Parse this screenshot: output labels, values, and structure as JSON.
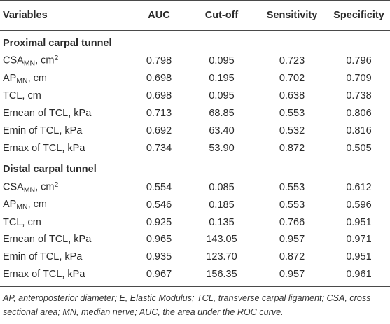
{
  "header": {
    "variables": "Variables",
    "auc": "AUC",
    "cutoff": "Cut-off",
    "sensitivity": "Sensitivity",
    "specificity": "Specificity"
  },
  "sections": [
    {
      "title": "Proximal carpal tunnel",
      "rows": [
        {
          "label": "CSA",
          "sub": "MN",
          "suffix": ", cm",
          "sup": "2",
          "auc": "0.798",
          "cutoff": "0.095",
          "sensitivity": "0.723",
          "specificity": "0.796"
        },
        {
          "label": "AP",
          "sub": "MN",
          "suffix": ", cm",
          "sup": "",
          "auc": "0.698",
          "cutoff": "0.195",
          "sensitivity": "0.702",
          "specificity": "0.709"
        },
        {
          "label": "TCL, cm",
          "sub": "",
          "suffix": "",
          "sup": "",
          "auc": "0.698",
          "cutoff": "0.095",
          "sensitivity": "0.638",
          "specificity": "0.738"
        },
        {
          "label": "Emean of TCL, kPa",
          "sub": "",
          "suffix": "",
          "sup": "",
          "auc": "0.713",
          "cutoff": "68.85",
          "sensitivity": "0.553",
          "specificity": "0.806"
        },
        {
          "label": "Emin of TCL, kPa",
          "sub": "",
          "suffix": "",
          "sup": "",
          "auc": "0.692",
          "cutoff": "63.40",
          "sensitivity": "0.532",
          "specificity": "0.816"
        },
        {
          "label": "Emax of TCL, kPa",
          "sub": "",
          "suffix": "",
          "sup": "",
          "auc": "0.734",
          "cutoff": "53.90",
          "sensitivity": "0.872",
          "specificity": "0.505"
        }
      ]
    },
    {
      "title": "Distal carpal tunnel",
      "rows": [
        {
          "label": "CSA",
          "sub": "MN",
          "suffix": ", cm",
          "sup": "2",
          "auc": "0.554",
          "cutoff": "0.085",
          "sensitivity": "0.553",
          "specificity": "0.612"
        },
        {
          "label": "AP",
          "sub": "MN",
          "suffix": ", cm",
          "sup": "",
          "auc": "0.546",
          "cutoff": "0.185",
          "sensitivity": "0.553",
          "specificity": "0.596"
        },
        {
          "label": "TCL, cm",
          "sub": "",
          "suffix": "",
          "sup": "",
          "auc": "0.925",
          "cutoff": "0.135",
          "sensitivity": "0.766",
          "specificity": "0.951"
        },
        {
          "label": "Emean of TCL, kPa",
          "sub": "",
          "suffix": "",
          "sup": "",
          "auc": "0.965",
          "cutoff": "143.05",
          "sensitivity": "0.957",
          "specificity": "0.971"
        },
        {
          "label": "Emin of TCL, kPa",
          "sub": "",
          "suffix": "",
          "sup": "",
          "auc": "0.935",
          "cutoff": "123.70",
          "sensitivity": "0.872",
          "specificity": "0.951"
        },
        {
          "label": "Emax of TCL, kPa",
          "sub": "",
          "suffix": "",
          "sup": "",
          "auc": "0.967",
          "cutoff": "156.35",
          "sensitivity": "0.957",
          "specificity": "0.961"
        }
      ]
    }
  ],
  "footnote": "AP, anteroposterior diameter; E, Elastic Modulus; TCL, transverse carpal ligament; CSA, cross sectional area; MN, median nerve; AUC, the area under the ROC curve."
}
